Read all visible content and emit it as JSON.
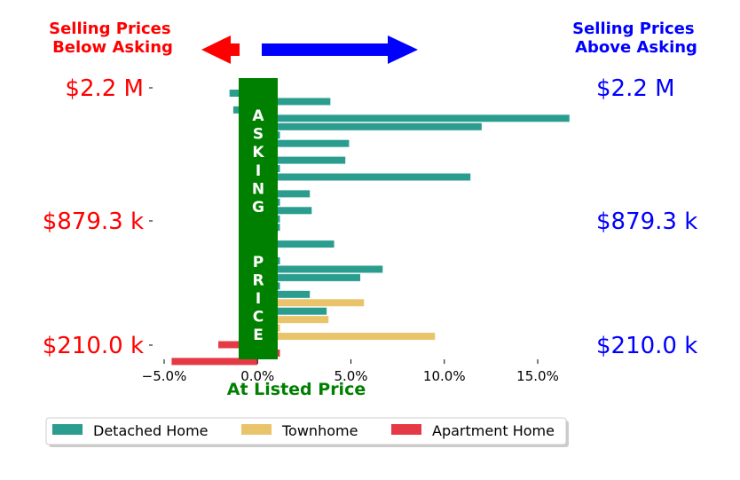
{
  "header": {
    "left_label": "Selling Prices\nBelow Asking",
    "right_label": "Selling Prices\nAbove Asking",
    "left_color": "#ff0000",
    "right_color": "#0000ff"
  },
  "center_band": {
    "label": "ASKING  PRICE",
    "color": "#008000",
    "text_color": "#ffffff"
  },
  "chart_data": {
    "type": "bar",
    "orientation": "horizontal",
    "x_axis": {
      "min": -0.05,
      "max": 0.165,
      "ticks": [
        -0.05,
        0.0,
        0.05,
        0.1,
        0.15
      ],
      "tick_labels": [
        "−5.0%",
        "0.0%",
        "5.0%",
        "10.0%",
        "15.0%"
      ],
      "label": "At Listed Price",
      "label_color": "#008000"
    },
    "y_axis": {
      "tick_labels": [
        "$2.2 M",
        "$879.3 k",
        "$210.0 k"
      ],
      "left_color": "#ff0000",
      "right_color": "#0000ff"
    },
    "grid": false,
    "legend_position": "bottom",
    "series": [
      {
        "name": "Detached Home",
        "color": "#2a9d8f"
      },
      {
        "name": "Townhome",
        "color": "#e9c46a"
      },
      {
        "name": "Apartment Home",
        "color": "#e63946"
      }
    ],
    "bars": [
      {
        "series": 0,
        "value": -0.015
      },
      {
        "series": 0,
        "value": 0.039
      },
      {
        "series": 0,
        "value": -0.013
      },
      {
        "series": 0,
        "value": 0.167
      },
      {
        "series": 0,
        "value": 0.12
      },
      {
        "series": 0,
        "value": 0.012
      },
      {
        "series": 0,
        "value": 0.049
      },
      {
        "series": 0,
        "value": 0.008
      },
      {
        "series": 0,
        "value": 0.047
      },
      {
        "series": 0,
        "value": 0.012
      },
      {
        "series": 0,
        "value": 0.114
      },
      {
        "series": 0,
        "value": 0.005
      },
      {
        "series": 0,
        "value": 0.028
      },
      {
        "series": 0,
        "value": 0.012
      },
      {
        "series": 0,
        "value": 0.029
      },
      {
        "series": 0,
        "value": 0.012
      },
      {
        "series": 0,
        "value": 0.012
      },
      {
        "series": 0,
        "value": 0.004
      },
      {
        "series": 0,
        "value": 0.041
      },
      {
        "series": 0,
        "value": 0.006
      },
      {
        "series": 0,
        "value": 0.012
      },
      {
        "series": 0,
        "value": 0.067
      },
      {
        "series": 0,
        "value": 0.055
      },
      {
        "series": 0,
        "value": 0.012
      },
      {
        "series": 0,
        "value": 0.028
      },
      {
        "series": 1,
        "value": 0.057
      },
      {
        "series": 0,
        "value": 0.037
      },
      {
        "series": 1,
        "value": 0.038
      },
      {
        "series": 1,
        "value": 0.012
      },
      {
        "series": 1,
        "value": 0.095
      },
      {
        "series": 2,
        "value": -0.021
      },
      {
        "series": 2,
        "value": 0.012
      },
      {
        "series": 2,
        "value": -0.046
      }
    ]
  }
}
